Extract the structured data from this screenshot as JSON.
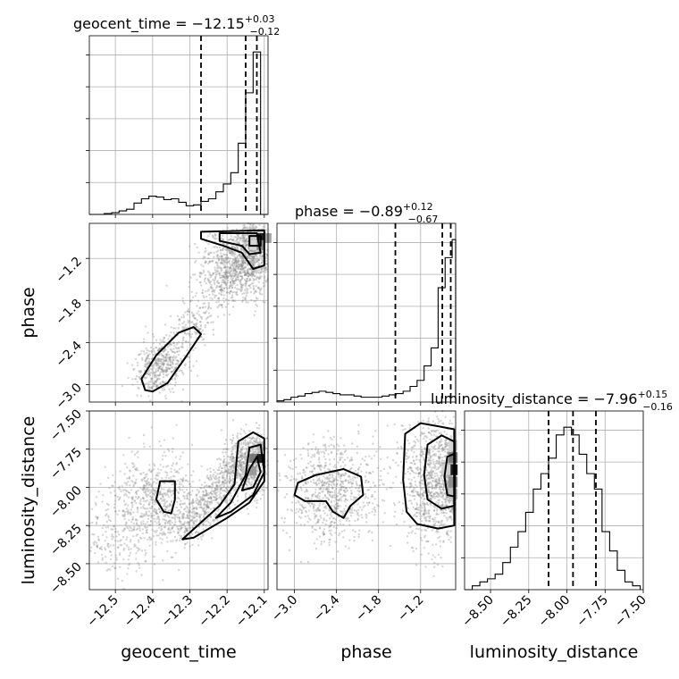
{
  "chart_data": {
    "type": "corner",
    "parameters": [
      "geocent_time",
      "phase",
      "luminosity_distance"
    ],
    "titles": [
      {
        "parameter": "geocent_time",
        "lhs": "geocent_time = −12.15",
        "plus": "+0.03",
        "minus": "−0.12"
      },
      {
        "parameter": "phase",
        "lhs": "phase = −0.89",
        "plus": "+0.12",
        "minus": "−0.67"
      },
      {
        "parameter": "luminosity_distance",
        "lhs": "luminosity_distance = −7.96",
        "plus": "+0.15",
        "minus": "−0.16"
      }
    ],
    "axis_labels": {
      "x": [
        "geocent_time",
        "phase",
        "luminosity_distance"
      ],
      "y": [
        "phase",
        "luminosity_distance"
      ]
    },
    "ranges": {
      "geocent_time": [
        -12.57,
        -12.09
      ],
      "phase": [
        -3.25,
        -0.7
      ],
      "luminosity_distance": [
        -8.67,
        -7.5
      ]
    },
    "ticks": {
      "geocent_time": [
        "−12.5",
        "−12.4",
        "−12.3",
        "−12.2",
        "−12.1"
      ],
      "phase": [
        "−3.0",
        "−2.4",
        "−1.8",
        "−1.2"
      ],
      "luminosity_distance": [
        "−8.50",
        "−8.25",
        "−8.00",
        "−7.75",
        "−7.50"
      ]
    },
    "tick_values": {
      "geocent_time": [
        -12.5,
        -12.4,
        -12.3,
        -12.2,
        -12.1
      ],
      "phase": [
        -3.0,
        -2.4,
        -1.8,
        -1.2
      ],
      "luminosity_distance": [
        -8.5,
        -8.25,
        -8.0,
        -7.75,
        -7.5
      ]
    },
    "quantiles": {
      "geocent_time": [
        -12.27,
        -12.15,
        -12.12
      ],
      "phase": [
        -1.56,
        -0.89,
        -0.77
      ],
      "luminosity_distance": [
        -8.12,
        -7.96,
        -7.81
      ]
    },
    "histograms": {
      "geocent_time": {
        "edges": [
          -12.57,
          -12.55,
          -12.53,
          -12.51,
          -12.49,
          -12.47,
          -12.45,
          -12.43,
          -12.41,
          -12.39,
          -12.37,
          -12.35,
          -12.33,
          -12.31,
          -12.29,
          -12.27,
          -12.25,
          -12.23,
          -12.21,
          -12.19,
          -12.17,
          -12.15,
          -12.13,
          -12.11,
          -12.09
        ],
        "counts": [
          0,
          0,
          1,
          2,
          4,
          6,
          13,
          18,
          21,
          20,
          17,
          18,
          14,
          10,
          11,
          15,
          18,
          26,
          35,
          48,
          82,
          140,
          187,
          0
        ]
      },
      "phase": {
        "edges": [
          -3.25,
          -3.15,
          -3.05,
          -2.95,
          -2.85,
          -2.75,
          -2.65,
          -2.55,
          -2.45,
          -2.35,
          -2.25,
          -2.15,
          -2.05,
          -1.95,
          -1.85,
          -1.75,
          -1.65,
          -1.55,
          -1.45,
          -1.35,
          -1.25,
          -1.15,
          -1.05,
          -0.95,
          -0.85,
          -0.75,
          -0.7
        ],
        "counts": [
          1,
          2,
          4,
          5,
          7,
          8,
          9,
          8,
          7,
          6,
          6,
          5,
          4,
          4,
          4,
          5,
          6,
          7,
          9,
          13,
          18,
          30,
          45,
          95,
          120,
          135
        ]
      },
      "luminosity_distance": {
        "edges": [
          -8.67,
          -8.62,
          -8.57,
          -8.52,
          -8.47,
          -8.42,
          -8.37,
          -8.32,
          -8.27,
          -8.22,
          -8.17,
          -8.12,
          -8.07,
          -8.02,
          -7.97,
          -7.92,
          -7.87,
          -7.82,
          -7.77,
          -7.72,
          -7.67,
          -7.62,
          -7.57,
          -7.52
        ],
        "counts": [
          0,
          5,
          10,
          14,
          20,
          35,
          55,
          75,
          100,
          130,
          150,
          170,
          200,
          210,
          200,
          175,
          150,
          130,
          75,
          50,
          25,
          10,
          5
        ]
      }
    },
    "peak_density": {
      "geocent_time_vs_phase": {
        "x": -12.12,
        "y": -1.0
      },
      "geocent_time_vs_luminosity_distance": {
        "x": -12.13,
        "y": -7.83
      },
      "phase_vs_luminosity_distance": {
        "x": -0.75,
        "y": -7.9
      }
    }
  }
}
